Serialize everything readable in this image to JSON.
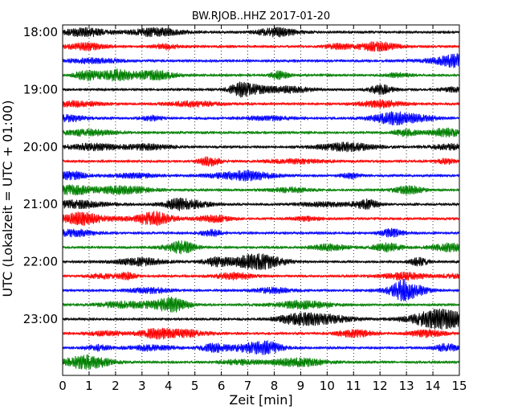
{
  "chart_data": {
    "type": "line",
    "title": "BW.RJOB..HHZ 2017-01-20",
    "xlabel": "Zeit  [min]",
    "ylabel": "UTC (Lokalzeit = UTC + 01:00)",
    "xlim": [
      0,
      15
    ],
    "xticks": [
      "0",
      "1",
      "2",
      "3",
      "4",
      "5",
      "6",
      "7",
      "8",
      "9",
      "10",
      "11",
      "12",
      "13",
      "14",
      "15"
    ],
    "yticks": [
      {
        "label": "18:00",
        "trace_index": 0
      },
      {
        "label": "19:00",
        "trace_index": 4
      },
      {
        "label": "20:00",
        "trace_index": 8
      },
      {
        "label": "21:00",
        "trace_index": 12
      },
      {
        "label": "22:00",
        "trace_index": 16
      },
      {
        "label": "23:00",
        "trace_index": 20
      }
    ],
    "grid": {
      "x": true,
      "y": false,
      "style": "dotted"
    },
    "trace_interval_minutes": 15,
    "trace_colors": [
      "#000000",
      "#ff0000",
      "#0000ff",
      "#008000"
    ],
    "trace_count": 24
  }
}
